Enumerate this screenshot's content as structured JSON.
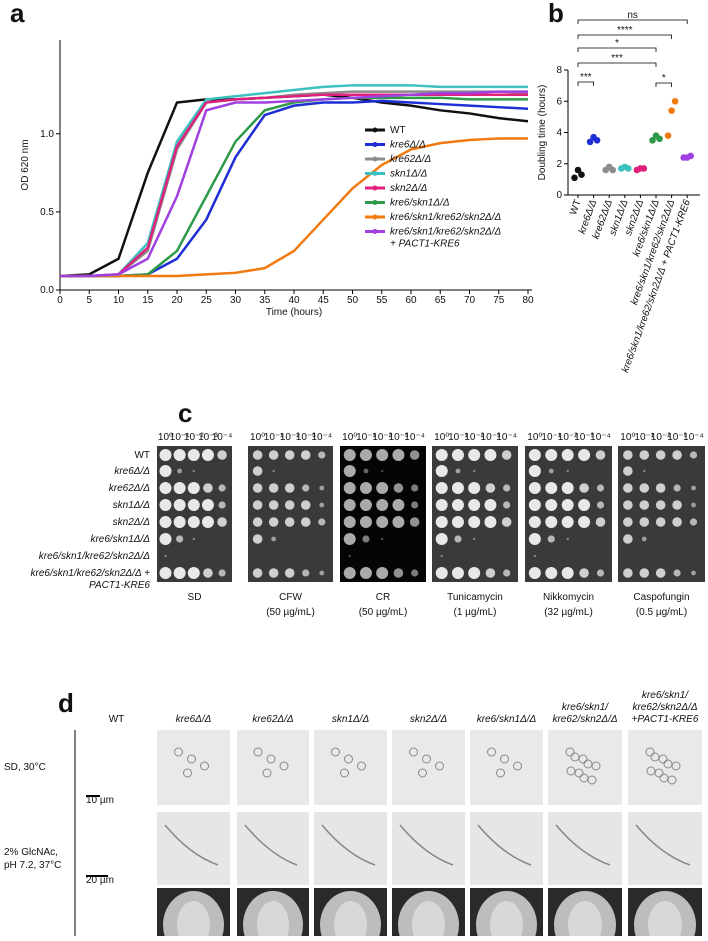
{
  "chart_data": [
    {
      "type": "line",
      "y_label": "OD 620 nm",
      "x_label": "Time (hours)",
      "x": [
        0,
        5,
        10,
        15,
        20,
        25,
        30,
        35,
        40,
        45,
        50,
        55,
        60,
        65,
        70,
        75,
        80
      ],
      "xlim": [
        0,
        80
      ],
      "xticks": [
        0,
        5,
        10,
        15,
        20,
        25,
        30,
        35,
        40,
        45,
        50,
        55,
        60,
        65,
        70,
        75,
        80
      ],
      "ylim": [
        0,
        1.6
      ],
      "yticks": [
        {
          "value": 0,
          "label": "0.0"
        },
        {
          "value": 0.5,
          "label": "0.5"
        },
        {
          "value": 1,
          "label": "1.0"
        }
      ],
      "series": [
        {
          "name": "WT",
          "color": "#111111",
          "values": [
            0.09,
            0.1,
            0.2,
            0.75,
            1.2,
            1.22,
            1.22,
            1.23,
            1.24,
            1.25,
            1.23,
            1.2,
            1.18,
            1.15,
            1.13,
            1.1,
            1.08
          ]
        },
        {
          "name": "kre6Δ/Δ",
          "color": "#1f2fd6",
          "values": [
            0.09,
            0.09,
            0.09,
            0.1,
            0.2,
            0.45,
            0.85,
            1.12,
            1.18,
            1.2,
            1.2,
            1.21,
            1.2,
            1.19,
            1.18,
            1.17,
            1.16
          ]
        },
        {
          "name": "kre62Δ/Δ",
          "color": "#8c8c8c",
          "values": [
            0.09,
            0.09,
            0.1,
            0.25,
            0.9,
            1.2,
            1.22,
            1.23,
            1.25,
            1.26,
            1.27,
            1.27,
            1.27,
            1.27,
            1.27,
            1.27,
            1.26
          ]
        },
        {
          "name": "skn1Δ/Δ",
          "color": "#3cc0c0",
          "values": [
            0.09,
            0.09,
            0.1,
            0.3,
            0.95,
            1.22,
            1.24,
            1.26,
            1.28,
            1.3,
            1.31,
            1.31,
            1.31,
            1.3,
            1.3,
            1.3,
            1.3
          ]
        },
        {
          "name": "skn2Δ/Δ",
          "color": "#e0207a",
          "values": [
            0.09,
            0.09,
            0.1,
            0.27,
            0.92,
            1.2,
            1.22,
            1.23,
            1.24,
            1.25,
            1.25,
            1.25,
            1.25,
            1.25,
            1.25,
            1.25,
            1.25
          ]
        },
        {
          "name": "kre6/skn1Δ/Δ",
          "color": "#2e9a48",
          "values": [
            0.09,
            0.09,
            0.09,
            0.1,
            0.25,
            0.6,
            0.95,
            1.15,
            1.2,
            1.22,
            1.23,
            1.23,
            1.23,
            1.23,
            1.22,
            1.22,
            1.22
          ]
        },
        {
          "name": "kre6/skn1/kre62/skn2Δ/Δ",
          "color": "#f07a10",
          "values": [
            0.09,
            0.09,
            0.09,
            0.09,
            0.09,
            0.1,
            0.11,
            0.14,
            0.25,
            0.45,
            0.65,
            0.8,
            0.9,
            0.94,
            0.96,
            0.97,
            0.97
          ]
        },
        {
          "name": "kre6/skn1/kre62/skn2Δ/Δ",
          "name_line2": "+ PACT1-KRE6",
          "color": "#a040e0",
          "values": [
            0.09,
            0.09,
            0.1,
            0.2,
            0.6,
            1.15,
            1.2,
            1.2,
            1.21,
            1.22,
            1.23,
            1.24,
            1.25,
            1.26,
            1.26,
            1.27,
            1.27
          ]
        }
      ]
    },
    {
      "type": "dot",
      "y_label": "Doubling time (hours)",
      "categories": [
        "WT",
        "kre6Δ/Δ",
        "kre62Δ/Δ",
        "skn1Δ/Δ",
        "skn2Δ/Δ",
        "kre6/skn1Δ/Δ",
        "kre6/skn1/kre62/skn2Δ/Δ",
        "kre6/skn1/kre62/skn2Δ/Δ + PACT1-KRE6"
      ],
      "colors": [
        "#111111",
        "#1f2fd6",
        "#8c8c8c",
        "#3cc0c0",
        "#e0207a",
        "#2e9a48",
        "#f07a10",
        "#a040e0"
      ],
      "values": [
        [
          1.1,
          1.6,
          1.3
        ],
        [
          3.4,
          3.7,
          3.5
        ],
        [
          1.6,
          1.8,
          1.6
        ],
        [
          1.7,
          1.8,
          1.7
        ],
        [
          1.6,
          1.7,
          1.7
        ],
        [
          3.5,
          3.8,
          3.6
        ],
        [
          3.8,
          5.4,
          6.0
        ],
        [
          2.4,
          2.4,
          2.5
        ]
      ],
      "ylim": [
        0,
        8
      ],
      "yticks": [
        0,
        2,
        4,
        6,
        8
      ],
      "significance": [
        "ns",
        "****",
        "*",
        "***",
        "***",
        "*"
      ]
    }
  ],
  "panel_labels": [
    "a",
    "b",
    "c",
    "d"
  ],
  "spot_assay": {
    "strains": [
      "WT",
      "kre6Δ/Δ",
      "kre62Δ/Δ",
      "skn1Δ/Δ",
      "skn2Δ/Δ",
      "kre6/skn1Δ/Δ",
      "kre6/skn1/kre62/skn2Δ/Δ",
      "kre6/skn1/kre62/skn2Δ/Δ +"
    ],
    "strain_note": "PACT1-KRE6",
    "dilutions": [
      "10⁰",
      "10⁻¹",
      "10⁻²",
      "10⁻³",
      "10⁻⁴"
    ],
    "plates": [
      {
        "name": "SD"
      },
      {
        "name": "CFW",
        "condition": "(50 µg/mL)"
      },
      {
        "name": "CR",
        "condition": "(50 µg/mL)"
      },
      {
        "name": "Tunicamycin",
        "condition": "(1 µg/mL)"
      },
      {
        "name": "Nikkomycin",
        "condition": "(32 µg/mL)"
      },
      {
        "name": "Caspofungin",
        "condition": "(0.5 µg/mL)"
      }
    ]
  },
  "morphology": {
    "strains": [
      [
        "WT"
      ],
      [
        "kre6Δ/Δ"
      ],
      [
        "kre62Δ/Δ"
      ],
      [
        "skn1Δ/Δ"
      ],
      [
        "skn2Δ/Δ"
      ],
      [
        "kre6/skn1Δ/Δ"
      ],
      [
        "kre6/skn1/",
        "kre62/skn2Δ/Δ"
      ],
      [
        "kre6/skn1/",
        "kre62/skn2Δ/Δ",
        "+PACT1-KRE6"
      ]
    ],
    "conditions": [
      [
        "SD, 30°C"
      ],
      [
        "2% GlcNAc,",
        "pH 7.2, 37°C"
      ]
    ],
    "scale_bars": [
      "10 µm",
      "20 µm"
    ]
  }
}
